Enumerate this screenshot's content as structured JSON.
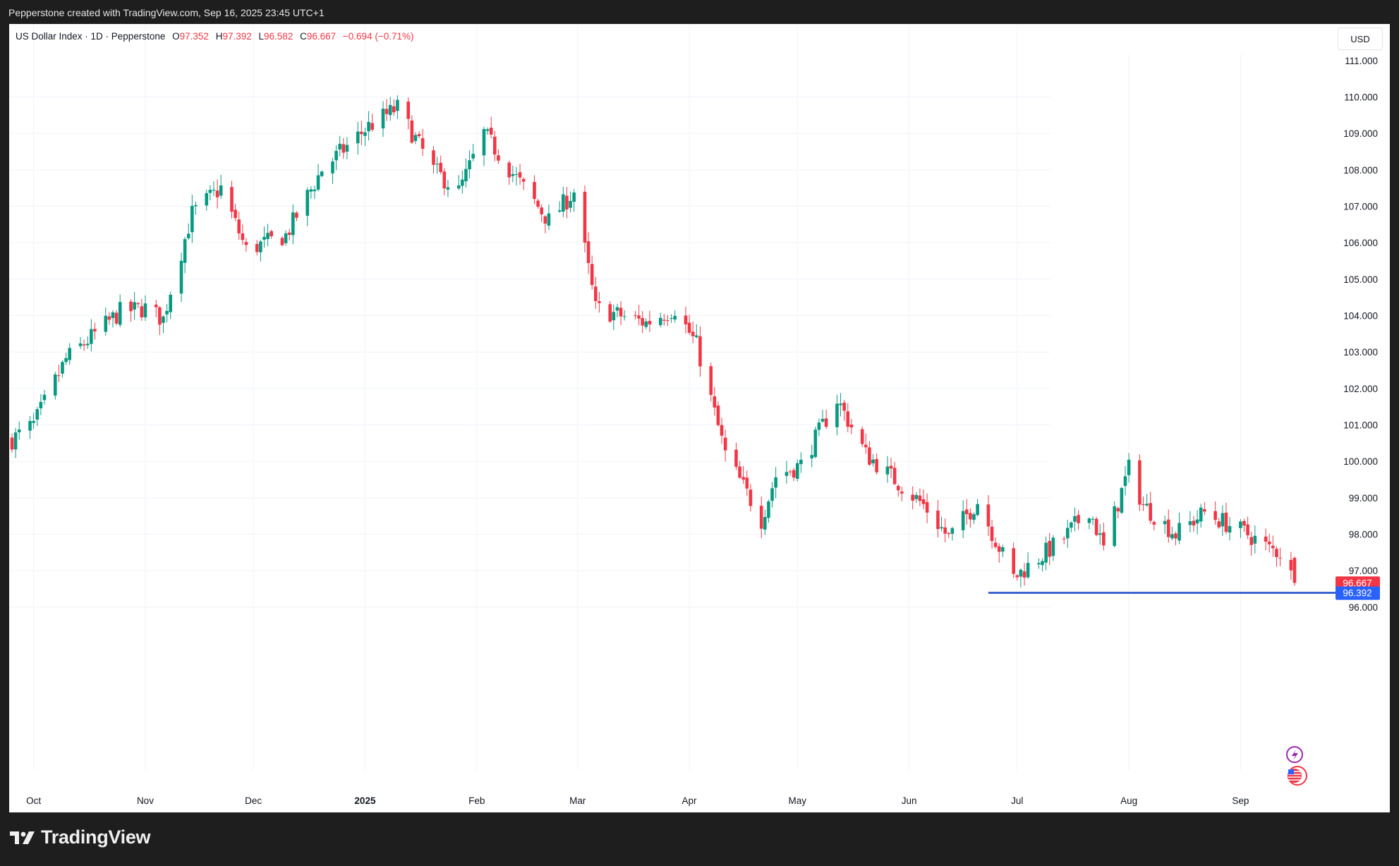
{
  "header": {
    "caption": "Pepperstone created with TradingView.com, Sep 16, 2025 23:45 UTC+1"
  },
  "legend": {
    "symbol": "US Dollar Index · 1D · Pepperstone",
    "open_label": "O",
    "open": "97.352",
    "high_label": "H",
    "high": "97.392",
    "low_label": "L",
    "low": "96.582",
    "close_label": "C",
    "close": "96.667",
    "change": "−0.694 (−0.71%)"
  },
  "currency_label": "USD",
  "footer": {
    "brand": "TradingView"
  },
  "colors": {
    "up": "#089981",
    "down": "#f23645",
    "level_line": "#1848cc",
    "price_tag": "#f23645",
    "level_tag": "#2962ff"
  },
  "chart_data": {
    "type": "candlestick",
    "y_axis_ticks": [
      "110.000",
      "109.000",
      "108.000",
      "107.000",
      "106.000",
      "105.000",
      "104.000",
      "103.000",
      "102.000",
      "101.000",
      "100.000",
      "99.000",
      "98.000",
      "97.000",
      "96.000"
    ],
    "ylim": [
      95.0,
      111.2
    ],
    "x_axis_labels": [
      "Oct",
      "Nov",
      "Dec",
      "2025",
      "Feb",
      "Mar",
      "Apr",
      "May",
      "Jun",
      "Jul",
      "Aug",
      "Sep"
    ],
    "horizontal_level": {
      "value": 96.392,
      "label": "96.392",
      "from": "Jun 23"
    },
    "last_price": {
      "value": 96.667,
      "label": "96.667"
    },
    "waypoints": [
      {
        "t": "2024-09-25",
        "v": 100.6
      },
      {
        "t": "2024-10-01",
        "v": 101.0
      },
      {
        "t": "2024-10-10",
        "v": 102.8
      },
      {
        "t": "2024-10-25",
        "v": 104.1
      },
      {
        "t": "2024-11-01",
        "v": 104.2
      },
      {
        "t": "2024-11-06",
        "v": 103.9
      },
      {
        "t": "2024-11-08",
        "v": 104.7
      },
      {
        "t": "2024-11-14",
        "v": 106.8
      },
      {
        "t": "2024-11-22",
        "v": 107.5
      },
      {
        "t": "2024-11-29",
        "v": 105.8
      },
      {
        "t": "2024-12-10",
        "v": 106.2
      },
      {
        "t": "2024-12-20",
        "v": 108.0
      },
      {
        "t": "2025-01-02",
        "v": 109.2
      },
      {
        "t": "2025-01-10",
        "v": 109.7
      },
      {
        "t": "2025-01-20",
        "v": 108.0
      },
      {
        "t": "2025-01-27",
        "v": 107.4
      },
      {
        "t": "2025-02-03",
        "v": 109.0
      },
      {
        "t": "2025-02-11",
        "v": 107.9
      },
      {
        "t": "2025-02-21",
        "v": 106.6
      },
      {
        "t": "2025-02-28",
        "v": 107.4
      },
      {
        "t": "2025-03-06",
        "v": 104.2
      },
      {
        "t": "2025-03-20",
        "v": 103.8
      },
      {
        "t": "2025-03-28",
        "v": 104.2
      },
      {
        "t": "2025-04-03",
        "v": 103.2
      },
      {
        "t": "2025-04-11",
        "v": 100.2
      },
      {
        "t": "2025-04-21",
        "v": 98.4
      },
      {
        "t": "2025-04-25",
        "v": 99.6
      },
      {
        "t": "2025-05-02",
        "v": 99.9
      },
      {
        "t": "2025-05-12",
        "v": 101.7
      },
      {
        "t": "2025-05-20",
        "v": 100.2
      },
      {
        "t": "2025-06-05",
        "v": 98.8
      },
      {
        "t": "2025-06-12",
        "v": 97.9
      },
      {
        "t": "2025-06-20",
        "v": 98.9
      },
      {
        "t": "2025-06-30",
        "v": 96.8
      },
      {
        "t": "2025-07-14",
        "v": 97.9
      },
      {
        "t": "2025-07-21",
        "v": 98.7
      },
      {
        "t": "2025-07-25",
        "v": 97.6
      },
      {
        "t": "2025-08-01",
        "v": 99.8
      },
      {
        "t": "2025-08-05",
        "v": 98.8
      },
      {
        "t": "2025-08-14",
        "v": 98.0
      },
      {
        "t": "2025-08-22",
        "v": 98.6
      },
      {
        "t": "2025-09-03",
        "v": 98.0
      },
      {
        "t": "2025-09-09",
        "v": 97.6
      },
      {
        "t": "2025-09-12",
        "v": 97.5
      },
      {
        "t": "2025-09-16",
        "v": 96.667
      }
    ]
  }
}
